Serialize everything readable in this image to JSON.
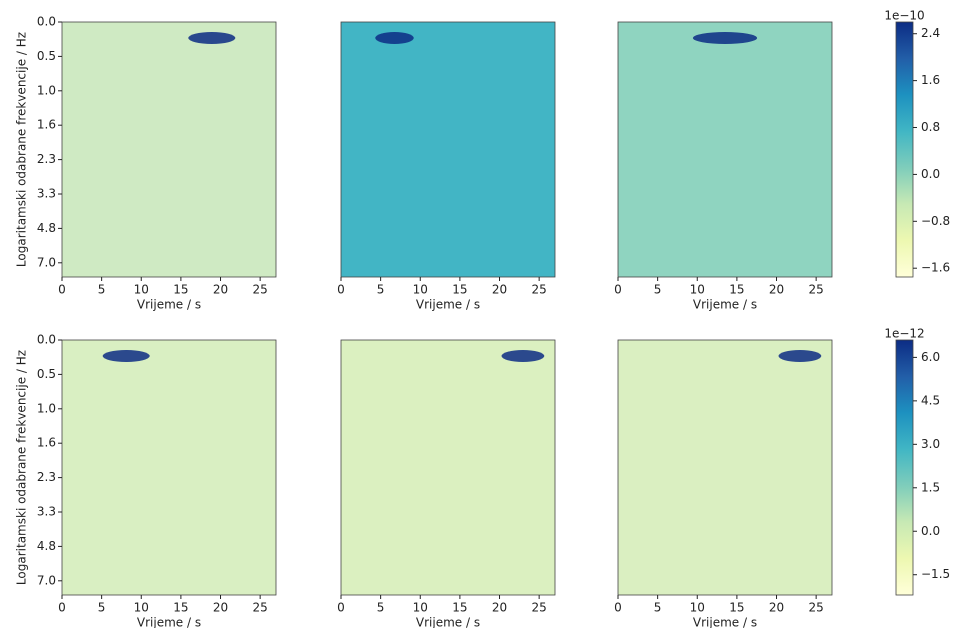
{
  "chart_data": [
    {
      "type": "heatmap",
      "color": "#cfeac3",
      "xlabel": "Vrijeme / s",
      "ylabel": "Logaritamski odabrane frekvencije / Hz",
      "xlim": [
        0,
        27
      ],
      "xticks": [
        0,
        5,
        10,
        15,
        20,
        25
      ],
      "y_categories": [
        "0.0",
        "0.5",
        "1.0",
        "1.6",
        "2.3",
        "3.3",
        "4.8",
        "7.0"
      ]
    },
    {
      "type": "heatmap",
      "color": "#42b5c5",
      "xlabel": "Vrijeme / s",
      "xlim": [
        0,
        27
      ],
      "xticks": [
        0,
        5,
        10,
        15,
        20,
        25
      ]
    },
    {
      "type": "heatmap",
      "color": "#8fd4c0",
      "xlabel": "Vrijeme / s",
      "xlim": [
        0,
        27
      ],
      "xticks": [
        0,
        5,
        10,
        15,
        20,
        25
      ]
    },
    {
      "type": "heatmap",
      "color": "#d9efc2",
      "xlabel": "Vrijeme / s",
      "ylabel": "Logaritamski odabrane frekvencije / Hz",
      "xlim": [
        0,
        27
      ],
      "xticks": [
        0,
        5,
        10,
        15,
        20,
        25
      ],
      "y_categories": [
        "0.0",
        "0.5",
        "1.0",
        "1.6",
        "2.3",
        "3.3",
        "4.8",
        "7.0"
      ]
    },
    {
      "type": "heatmap",
      "color": "#dbf0c0",
      "xlabel": "Vrijeme / s",
      "xlim": [
        0,
        27
      ],
      "xticks": [
        0,
        5,
        10,
        15,
        20,
        25
      ]
    },
    {
      "type": "heatmap",
      "color": "#daefc1",
      "xlabel": "Vrijeme / s",
      "xlim": [
        0,
        27
      ],
      "xticks": [
        0,
        5,
        10,
        15,
        20,
        25
      ]
    },
    {
      "type": "colorbar",
      "scale_label": "1e−10",
      "colors": [
        "#ffffd9",
        "#edf8b1",
        "#c7e9b4",
        "#7fcdbb",
        "#41b6c4",
        "#1d91c0",
        "#225ea8",
        "#0c2c84"
      ],
      "ylim": [
        -1.75,
        2.6
      ],
      "yticks": [
        2.4,
        1.6,
        0.8,
        {
          "value": 0,
          "label": "0.0"
        },
        {
          "value": -0.8,
          "label": "−0.8"
        },
        {
          "value": -1.6,
          "label": "−1.6"
        }
      ]
    },
    {
      "type": "colorbar",
      "scale_label": "1e−12",
      "colors": [
        "#ffffd9",
        "#edf8b1",
        "#c7e9b4",
        "#7fcdbb",
        "#41b6c4",
        "#1d91c0",
        "#225ea8",
        "#0c2c84"
      ],
      "ylim": [
        -2.2,
        6.6
      ],
      "yticks": [
        {
          "value": 6,
          "label": "6.0"
        },
        4.5,
        {
          "value": 3,
          "label": "3.0"
        },
        1.5,
        {
          "value": 0,
          "label": "0.0"
        },
        {
          "value": -1.5,
          "label": "−1.5"
        }
      ]
    }
  ]
}
